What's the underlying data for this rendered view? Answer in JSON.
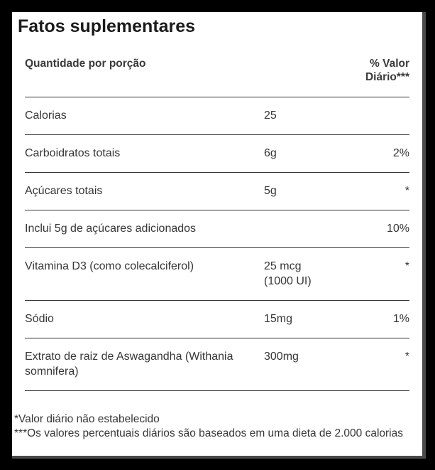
{
  "label": {
    "title": "Fatos suplementares",
    "header": {
      "left": "Quantidade por porção",
      "right": "% Valor Diário***"
    },
    "rows": [
      {
        "name": "Calorias",
        "amount": "25",
        "dv": ""
      },
      {
        "name": "Carboidratos totais",
        "amount": "6g",
        "dv": "2%"
      },
      {
        "name": "Açúcares totais",
        "amount": "5g",
        "dv": "*"
      },
      {
        "name": "Inclui 5g de açúcares adicionados",
        "amount": "",
        "dv": "10%"
      },
      {
        "name": "Vitamina D3 (como colecalciferol)",
        "amount": "25 mcg",
        "amount_note": "(1000 UI)",
        "dv": "*"
      },
      {
        "name": "Sódio",
        "amount": "15mg",
        "dv": "1%"
      },
      {
        "name": "Extrato de raiz de Aswagandha (Withania somnifera)",
        "amount": "300mg",
        "dv": "*"
      }
    ],
    "footnotes": [
      "*Valor diário não estabelecido",
      "***Os valores percentuais diários são baseados em uma dieta de 2.000 calorias"
    ],
    "colors": {
      "background": "#000000",
      "card": "#ffffff",
      "card_shadow": "#4a4a4a",
      "title_text": "#1b1b1b",
      "body_text": "#363636",
      "rule": "#333333"
    }
  }
}
